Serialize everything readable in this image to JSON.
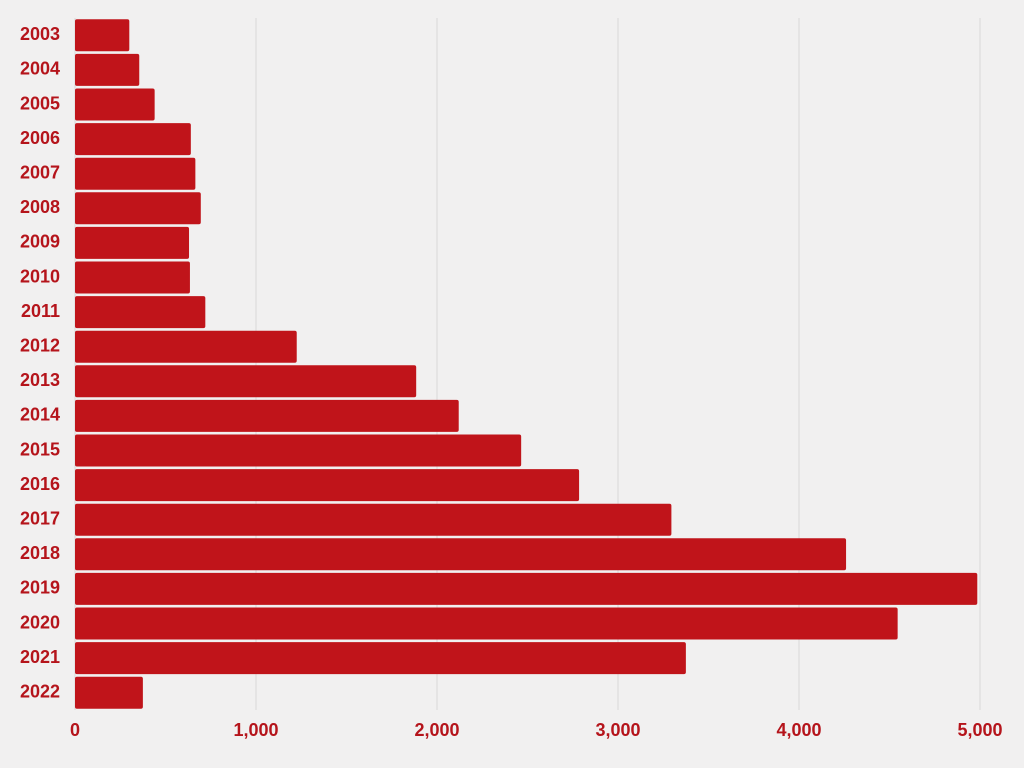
{
  "chart_data": {
    "type": "bar",
    "orientation": "horizontal",
    "categories": [
      "2003",
      "2004",
      "2005",
      "2006",
      "2007",
      "2008",
      "2009",
      "2010",
      "2011",
      "2012",
      "2013",
      "2014",
      "2015",
      "2016",
      "2017",
      "2018",
      "2019",
      "2020",
      "2021",
      "2022"
    ],
    "values": [
      300,
      355,
      440,
      640,
      665,
      695,
      630,
      635,
      720,
      1225,
      1885,
      2120,
      2465,
      2785,
      3295,
      4260,
      4985,
      4545,
      3375,
      375
    ],
    "color": "#c0141a",
    "xlim": [
      0,
      5000
    ],
    "xticks": [
      0,
      {
        "value": 1000,
        "label": "1,000"
      },
      {
        "value": 2000,
        "label": "2,000"
      },
      {
        "value": 3000,
        "label": "3,000"
      },
      {
        "value": 4000,
        "label": "4,000"
      },
      {
        "value": 5000,
        "label": "5,000"
      }
    ],
    "grid": true
  }
}
